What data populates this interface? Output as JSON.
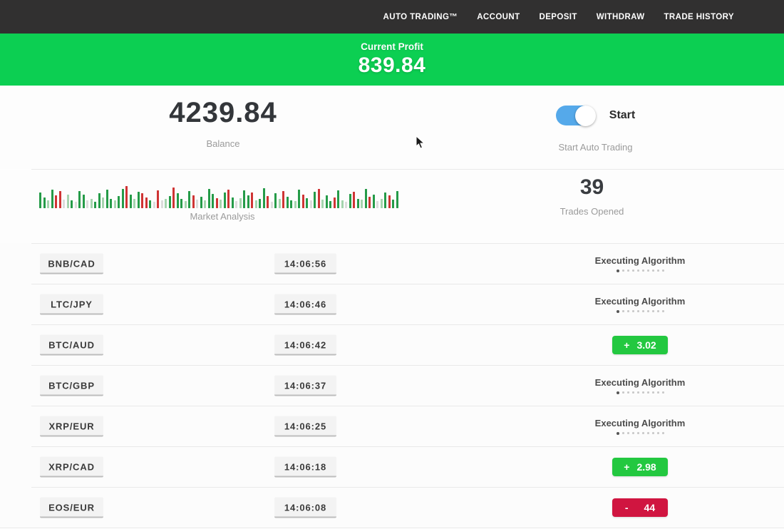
{
  "navbar": {
    "items": [
      "AUTO TRADING™",
      "ACCOUNT",
      "DEPOSIT",
      "WITHDRAW",
      "TRADE HISTORY"
    ]
  },
  "profit_banner": {
    "label": "Current Profit",
    "value": "839.84",
    "bg_color": "#0ccf52"
  },
  "summary": {
    "balance_value": "4239.84",
    "balance_label": "Balance",
    "toggle_label": "Start",
    "toggle_sub_label": "Start Auto Trading",
    "toggle_state": "on",
    "toggle_color": "#55a9ea"
  },
  "market": {
    "chart_label": "Market Analysis",
    "trades_value": "39",
    "trades_label": "Trades Opened"
  },
  "chart_data": {
    "type": "bar",
    "title": "Market Analysis",
    "description": "mini candlestick-style strip of green/red volume bars, bottom-aligned, no axes or gridlines",
    "bar_colors": {
      "g": "#259b48",
      "l": "#a5d4ae",
      "r": "#cf3434",
      "x": "#dcdcdc"
    },
    "bars": [
      [
        22,
        "g"
      ],
      [
        15,
        "g"
      ],
      [
        11,
        "l"
      ],
      [
        26,
        "g"
      ],
      [
        18,
        "r"
      ],
      [
        24,
        "r"
      ],
      [
        12,
        "x"
      ],
      [
        19,
        "l"
      ],
      [
        11,
        "g"
      ],
      [
        9,
        "x"
      ],
      [
        24,
        "g"
      ],
      [
        19,
        "g"
      ],
      [
        11,
        "x"
      ],
      [
        13,
        "l"
      ],
      [
        9,
        "g"
      ],
      [
        21,
        "g"
      ],
      [
        15,
        "l"
      ],
      [
        26,
        "g"
      ],
      [
        13,
        "g"
      ],
      [
        11,
        "l"
      ],
      [
        17,
        "g"
      ],
      [
        27,
        "g"
      ],
      [
        31,
        "r"
      ],
      [
        19,
        "g"
      ],
      [
        13,
        "l"
      ],
      [
        23,
        "g"
      ],
      [
        21,
        "r"
      ],
      [
        15,
        "r"
      ],
      [
        11,
        "g"
      ],
      [
        9,
        "x"
      ],
      [
        25,
        "r"
      ],
      [
        11,
        "x"
      ],
      [
        13,
        "l"
      ],
      [
        17,
        "g"
      ],
      [
        29,
        "r"
      ],
      [
        21,
        "g"
      ],
      [
        13,
        "g"
      ],
      [
        10,
        "l"
      ],
      [
        24,
        "g"
      ],
      [
        18,
        "r"
      ],
      [
        12,
        "x"
      ],
      [
        16,
        "g"
      ],
      [
        11,
        "l"
      ],
      [
        27,
        "g"
      ],
      [
        20,
        "g"
      ],
      [
        14,
        "r"
      ],
      [
        12,
        "l"
      ],
      [
        22,
        "g"
      ],
      [
        26,
        "r"
      ],
      [
        15,
        "g"
      ],
      [
        10,
        "x"
      ],
      [
        14,
        "l"
      ],
      [
        25,
        "g"
      ],
      [
        18,
        "g"
      ],
      [
        22,
        "r"
      ],
      [
        11,
        "l"
      ],
      [
        13,
        "g"
      ],
      [
        28,
        "g"
      ],
      [
        17,
        "r"
      ],
      [
        9,
        "x"
      ],
      [
        21,
        "g"
      ],
      [
        13,
        "l"
      ],
      [
        24,
        "r"
      ],
      [
        16,
        "g"
      ],
      [
        11,
        "g"
      ],
      [
        10,
        "l"
      ],
      [
        26,
        "g"
      ],
      [
        19,
        "r"
      ],
      [
        14,
        "g"
      ],
      [
        11,
        "x"
      ],
      [
        23,
        "g"
      ],
      [
        27,
        "r"
      ],
      [
        12,
        "l"
      ],
      [
        18,
        "g"
      ],
      [
        10,
        "g"
      ],
      [
        15,
        "r"
      ],
      [
        25,
        "g"
      ],
      [
        11,
        "l"
      ],
      [
        9,
        "x"
      ],
      [
        20,
        "g"
      ],
      [
        23,
        "r"
      ],
      [
        13,
        "g"
      ],
      [
        12,
        "l"
      ],
      [
        27,
        "g"
      ],
      [
        16,
        "r"
      ],
      [
        19,
        "g"
      ],
      [
        10,
        "x"
      ],
      [
        13,
        "l"
      ],
      [
        22,
        "g"
      ],
      [
        18,
        "r"
      ],
      [
        12,
        "g"
      ],
      [
        24,
        "g"
      ]
    ]
  },
  "trades": [
    {
      "pair": "BNB/CAD",
      "time": "14:06:56",
      "status": "executing",
      "status_label": "Executing Algorithm"
    },
    {
      "pair": "LTC/JPY",
      "time": "14:06:46",
      "status": "executing",
      "status_label": "Executing Algorithm"
    },
    {
      "pair": "BTC/AUD",
      "time": "14:06:42",
      "status": "profit",
      "sign": "+",
      "value": "3.02"
    },
    {
      "pair": "BTC/GBP",
      "time": "14:06:37",
      "status": "executing",
      "status_label": "Executing Algorithm"
    },
    {
      "pair": "XRP/EUR",
      "time": "14:06:25",
      "status": "executing",
      "status_label": "Executing Algorithm"
    },
    {
      "pair": "XRP/CAD",
      "time": "14:06:18",
      "status": "profit",
      "sign": "+",
      "value": "2.98"
    },
    {
      "pair": "EOS/EUR",
      "time": "14:06:08",
      "status": "loss",
      "sign": "-",
      "value": "44"
    }
  ],
  "colors": {
    "navbar_bg": "#313030",
    "banner_green": "#0ccf52",
    "badge_green": "#23c840",
    "badge_red": "#d01540",
    "toggle_blue": "#55a9ea",
    "muted_text": "#9b9b9b"
  }
}
